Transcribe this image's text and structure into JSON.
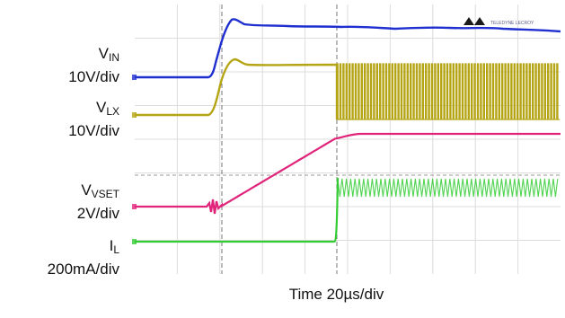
{
  "chart_data": {
    "type": "line",
    "title": "",
    "xlabel": "Time 20µs/div",
    "ylabel": "",
    "x_divisions": 10,
    "grid": true,
    "brand": "TELEDYNE LECROY",
    "channels": [
      {
        "id": "vin",
        "name": "V",
        "sub": "IN",
        "scale": "10V/div",
        "color": "#1f2fd0"
      },
      {
        "id": "vlx",
        "name": "V",
        "sub": "LX",
        "scale": "10V/div",
        "color": "#b5a414"
      },
      {
        "id": "vset",
        "name": "V",
        "sub": "VSET",
        "scale": "2V/div",
        "color": "#e0247a"
      },
      {
        "id": "il",
        "name": "I",
        "sub": "L",
        "scale": "200mA/div",
        "color": "#33cc33"
      }
    ]
  }
}
